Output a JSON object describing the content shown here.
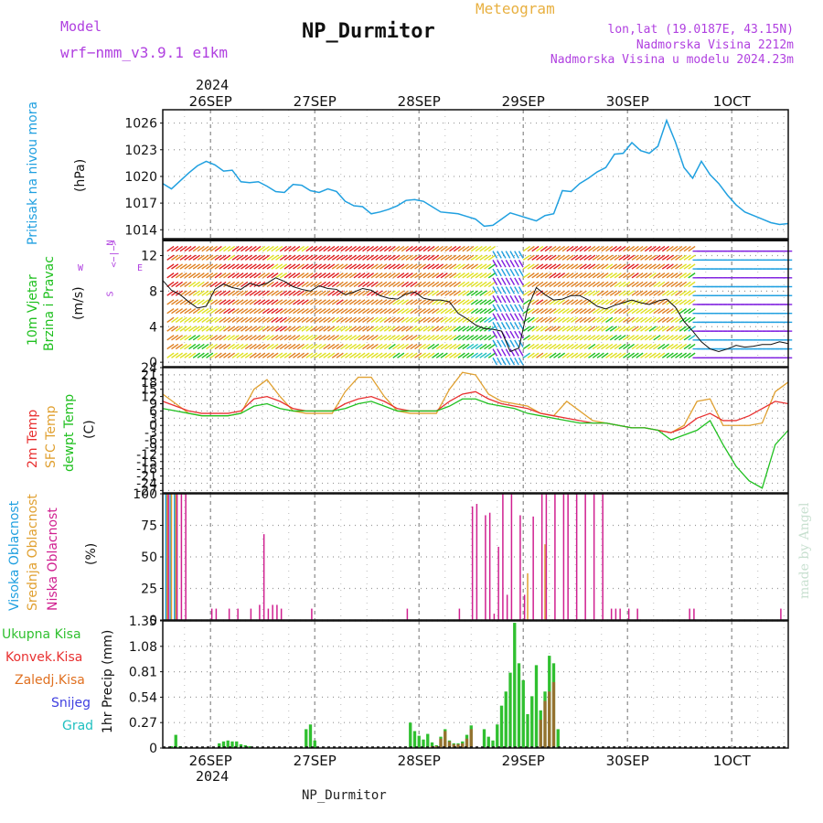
{
  "header": {
    "model_label": "Model",
    "model_name": "wrf−nmm_v3.9.1  e1km",
    "meteogram": "Meteogram",
    "station": "NP_Durmitor",
    "lonlat": "lon,lat (19.0187E, 43.15N)",
    "elev": "Nadmorska Visina 2212m",
    "elev_model": "Nadmorska Visina u modelu 2024.23m",
    "footer_station": "NP_Durmitor",
    "credit": "made by Angel",
    "year_top": "2024",
    "year_bottom": "2024"
  },
  "dates": [
    "26SEP",
    "27SEP",
    "28SEP",
    "29SEP",
    "30SEP",
    "1OCT"
  ],
  "labels": {
    "pressure_name": "Pritisak na nivou mora",
    "pressure_unit": "(hPa)",
    "wind_name1": "10m  Vjetar",
    "wind_name2": "Brzina i Pravac",
    "wind_unit": "(m/s)",
    "compass_n": "N",
    "compass_s": "S",
    "compass_w": "W",
    "compass_e": "E",
    "temp_name1": "2m Temp",
    "temp_name2": "SFC Temp",
    "temp_name3": "dewpt Temp",
    "temp_unit": "(C)",
    "cloud_name1": "Visoka Oblacnost",
    "cloud_name2": "Srednja Oblacnost",
    "cloud_name3": "Niska Oblacnost",
    "cloud_unit": "(%)",
    "precip_unit": "1hr Precip  (mm)",
    "legend_total": "Ukupna  Kisa",
    "legend_conv": "Konvek.Kisa",
    "legend_freez": "Zaledj.Kisa",
    "legend_snow": "Snijeg",
    "legend_hail": "Grad"
  },
  "colors": {
    "pressure": "#20a0e0",
    "temp2m": "#e83030",
    "sfc": "#e0a030",
    "dewpt": "#20c020",
    "high_cloud": "#20a0e0",
    "mid_cloud": "#e0a030",
    "low_cloud": "#d02090",
    "total_rain": "#30c030",
    "conv_rain": "#e83030",
    "freez_rain": "#e07020",
    "snow": "#4040e0",
    "hail": "#20c0c0",
    "purple_text": "#b040e0"
  },
  "chart_data": [
    {
      "type": "line",
      "title": "",
      "ylabel": "Pritisak na nivou mora (hPa)",
      "ylim": [
        1013,
        1027.5
      ],
      "yticks": [
        1014,
        1017,
        1020,
        1023,
        1026
      ],
      "x_range_hours": [
        -11,
        133
      ],
      "grid": true,
      "series": [
        {
          "name": "Pritisak na nivou mora",
          "x": [
            -11,
            -9,
            -7,
            -5,
            -3,
            -1,
            1,
            3,
            5,
            7,
            9,
            11,
            13,
            15,
            17,
            19,
            21,
            23,
            25,
            27,
            29,
            31,
            33,
            35,
            37,
            39,
            41,
            43,
            45,
            47,
            49,
            51,
            53,
            55,
            57,
            59,
            61,
            63,
            65,
            67,
            69,
            71,
            73,
            75,
            77,
            79,
            81,
            83,
            85,
            87,
            89,
            91,
            93,
            95,
            97,
            99,
            101,
            103,
            105,
            107,
            109,
            111,
            113,
            115,
            117,
            119,
            121,
            123,
            125,
            127,
            129,
            131,
            133
          ],
          "values": [
            1019.2,
            1018.6,
            1019.5,
            1020.4,
            1021.2,
            1021.7,
            1021.3,
            1020.6,
            1020.7,
            1019.4,
            1019.3,
            1019.4,
            1018.9,
            1018.3,
            1018.2,
            1019.1,
            1019.0,
            1018.4,
            1018.2,
            1018.6,
            1018.3,
            1017.2,
            1016.7,
            1016.6,
            1015.8,
            1016.0,
            1016.3,
            1016.7,
            1017.3,
            1017.4,
            1017.2,
            1016.6,
            1016.0,
            1015.9,
            1015.8,
            1015.5,
            1015.2,
            1014.4,
            1014.5,
            1015.2,
            1015.9,
            1015.6,
            1015.3,
            1015.0,
            1015.6,
            1015.8,
            1018.4,
            1018.3,
            1019.2,
            1019.8,
            1020.5,
            1021.0,
            1022.5,
            1022.6,
            1023.8,
            1022.9,
            1022.6,
            1023.4,
            1026.3,
            1023.9,
            1021.0,
            1019.8,
            1021.7,
            1020.2,
            1019.2,
            1017.9,
            1016.8,
            1016.0,
            1015.6,
            1015.2,
            1014.8,
            1014.6,
            1014.7
          ]
        }
      ]
    },
    {
      "type": "line",
      "title": "",
      "ylabel": "10m Vjetar Brzina i Pravac (m/s)",
      "ylim": [
        -0.5,
        13.8
      ],
      "yticks": [
        0,
        4,
        8,
        12
      ],
      "x_range_hours": [
        -11,
        133
      ],
      "grid": true,
      "series": [
        {
          "name": "10m Vjetar",
          "x": [
            -11,
            -9,
            -7,
            -5,
            -3,
            -1,
            1,
            3,
            5,
            7,
            9,
            11,
            13,
            15,
            17,
            19,
            21,
            23,
            25,
            27,
            29,
            31,
            33,
            35,
            37,
            39,
            41,
            43,
            45,
            47,
            49,
            51,
            53,
            55,
            57,
            59,
            61,
            63,
            65,
            67,
            69,
            71,
            73,
            75,
            77,
            79,
            81,
            83,
            85,
            87,
            89,
            91,
            93,
            95,
            97,
            99,
            101,
            103,
            105,
            107,
            109,
            111,
            113,
            115,
            117,
            119,
            121,
            123,
            125,
            127,
            129,
            131,
            133
          ],
          "values": [
            9.2,
            8.1,
            7.6,
            6.8,
            6.1,
            6.3,
            8.2,
            8.8,
            8.4,
            8.2,
            8.9,
            8.6,
            8.9,
            9.5,
            9.1,
            8.5,
            8.2,
            8.0,
            8.6,
            8.3,
            8.2,
            7.6,
            7.9,
            8.3,
            8.1,
            7.5,
            7.2,
            7.1,
            7.7,
            7.9,
            7.2,
            7.0,
            7.0,
            6.8,
            5.5,
            4.9,
            4.2,
            3.8,
            3.7,
            3.5,
            1.2,
            1.6,
            6.1,
            8.4,
            7.6,
            7.0,
            7.1,
            7.5,
            7.5,
            7.0,
            6.3,
            6.0,
            6.4,
            6.7,
            7.0,
            6.7,
            6.5,
            6.9,
            7.1,
            6.2,
            4.6,
            3.5,
            2.3,
            1.5,
            1.2,
            1.5,
            1.9,
            1.7,
            1.8,
            2.0,
            2.0,
            2.3,
            2.1
          ]
        }
      ],
      "colormap": [
        "#20c020",
        "#20c0c0",
        "#20a0e0",
        "#8020e0",
        "#e0e020",
        "#e08020",
        "#e02020"
      ]
    },
    {
      "type": "line",
      "title": "",
      "ylabel": "Temp (C)",
      "ylim": [
        -28,
        24
      ],
      "yticks": [
        -27,
        -24,
        -21,
        -18,
        -15,
        -12,
        -9,
        -6,
        -3,
        0,
        3,
        6,
        9,
        12,
        15,
        18,
        21,
        24
      ],
      "x_range_hours": [
        -11,
        133
      ],
      "grid": true,
      "series": [
        {
          "name": "2m Temp",
          "x": [
            -11,
            -8,
            -5,
            -2,
            1,
            4,
            7,
            10,
            13,
            16,
            19,
            22,
            25,
            28,
            31,
            34,
            37,
            40,
            43,
            46,
            49,
            52,
            55,
            58,
            61,
            64,
            67,
            70,
            73,
            76,
            79,
            82,
            85,
            88,
            91,
            94,
            97,
            100,
            103,
            106,
            109,
            112,
            115,
            118,
            121,
            124,
            127,
            130,
            133
          ],
          "values": [
            10,
            8,
            6,
            5,
            5,
            5,
            6,
            11,
            12,
            10,
            7,
            6,
            6,
            6,
            9,
            11,
            12,
            10,
            7,
            6,
            6,
            6,
            10,
            13,
            14,
            11,
            9,
            8,
            7,
            5,
            4,
            3,
            2,
            1,
            1,
            0,
            -1,
            -1,
            -2,
            -3,
            -1,
            3,
            5,
            2,
            2,
            4,
            7,
            10,
            9
          ]
        },
        {
          "name": "SFC Temp",
          "x": [
            -11,
            -8,
            -5,
            -2,
            1,
            4,
            7,
            10,
            13,
            16,
            19,
            22,
            25,
            28,
            31,
            34,
            37,
            40,
            43,
            46,
            49,
            52,
            55,
            58,
            61,
            64,
            67,
            70,
            73,
            76,
            79,
            82,
            85,
            88,
            91,
            94,
            97,
            100,
            103,
            106,
            109,
            112,
            115,
            118,
            121,
            124,
            127,
            130,
            133
          ],
          "values": [
            13,
            9,
            5,
            4,
            4,
            4,
            5,
            15,
            19,
            12,
            6,
            5,
            5,
            5,
            14,
            20,
            20,
            12,
            6,
            5,
            5,
            5,
            15,
            22,
            21,
            13,
            10,
            9,
            8,
            5,
            4,
            10,
            6,
            2,
            1,
            0,
            -1,
            -1,
            -2,
            -3,
            0,
            10,
            11,
            0,
            0,
            0,
            1,
            14,
            18
          ]
        },
        {
          "name": "dewpt Temp",
          "x": [
            -11,
            -8,
            -5,
            -2,
            1,
            4,
            7,
            10,
            13,
            16,
            19,
            22,
            25,
            28,
            31,
            34,
            37,
            40,
            43,
            46,
            49,
            52,
            55,
            58,
            61,
            64,
            67,
            70,
            73,
            76,
            79,
            82,
            85,
            88,
            91,
            94,
            97,
            100,
            103,
            106,
            109,
            112,
            115,
            118,
            121,
            124,
            127,
            130,
            133
          ],
          "values": [
            7,
            6,
            5,
            4,
            4,
            4,
            5,
            8,
            9,
            7,
            6,
            6,
            6,
            6,
            7,
            9,
            10,
            8,
            6,
            6,
            6,
            6,
            8,
            11,
            11,
            9,
            8,
            7,
            5,
            4,
            3,
            2,
            1,
            1,
            1,
            0,
            -1,
            -1,
            -2,
            -6,
            -4,
            -2,
            2,
            -8,
            -17,
            -23,
            -26,
            -8,
            -2
          ]
        }
      ]
    },
    {
      "type": "bar",
      "title": "",
      "ylabel": "Oblacnost (%)",
      "ylim": [
        0,
        100
      ],
      "yticks": [
        0,
        25,
        50,
        75,
        100
      ],
      "x_range_hours": [
        -11,
        133
      ],
      "grid": true,
      "series": [
        {
          "name": "Visoka Oblacnost",
          "x": [
            -10,
            -9,
            -8
          ],
          "values": [
            100,
            100,
            100
          ]
        },
        {
          "name": "Srednja Oblacnost",
          "x": [
            -10,
            -9,
            -8,
            73,
            77
          ],
          "values": [
            100,
            100,
            100,
            37,
            60
          ]
        },
        {
          "name": "Niska Oblacnost",
          "x": [
            -10,
            -8,
            -7,
            -6,
            0,
            1,
            4,
            6,
            9,
            11,
            12,
            13,
            14,
            15,
            16,
            23,
            45,
            57,
            60,
            61,
            63,
            64,
            65,
            66,
            67,
            68,
            69,
            71,
            72,
            74,
            76,
            77,
            79,
            81,
            82,
            84,
            86,
            88,
            90,
            92,
            93,
            94,
            96,
            98,
            110,
            111,
            131
          ],
          "values": [
            100,
            100,
            100,
            100,
            9,
            9,
            9,
            9,
            9,
            12,
            68,
            9,
            12,
            12,
            9,
            9,
            9,
            9,
            90,
            92,
            83,
            85,
            5,
            58,
            100,
            20,
            100,
            83,
            20,
            82,
            100,
            100,
            100,
            100,
            100,
            100,
            100,
            100,
            100,
            9,
            9,
            9,
            9,
            9,
            9,
            9,
            9
          ]
        }
      ]
    },
    {
      "type": "bar",
      "title": "",
      "ylabel": "1hr Precip (mm)",
      "ylim": [
        0,
        1.35
      ],
      "yticks": [
        0,
        0.27,
        0.54,
        0.81,
        1.08,
        1.35
      ],
      "x_range_hours": [
        -11,
        133
      ],
      "grid": true,
      "series": [
        {
          "name": "Ukupna Kisa",
          "x": [
            -9,
            -8,
            -7,
            2,
            3,
            4,
            5,
            6,
            7,
            8,
            9,
            22,
            23,
            24,
            46,
            47,
            48,
            49,
            50,
            51,
            52,
            53,
            54,
            55,
            56,
            57,
            58,
            59,
            60,
            63,
            64,
            65,
            66,
            67,
            68,
            69,
            70,
            71,
            72,
            73,
            74,
            75,
            76,
            77,
            78,
            79,
            80
          ],
          "values": [
            0.02,
            0.14,
            0.02,
            0.05,
            0.07,
            0.08,
            0.07,
            0.07,
            0.04,
            0.03,
            0.02,
            0.2,
            0.25,
            0.08,
            0.27,
            0.18,
            0.13,
            0.09,
            0.15,
            0.06,
            0.03,
            0.12,
            0.2,
            0.08,
            0.05,
            0.05,
            0.07,
            0.14,
            0.24,
            0.2,
            0.12,
            0.08,
            0.25,
            0.45,
            0.6,
            0.8,
            1.33,
            0.9,
            0.72,
            0.36,
            0.55,
            0.88,
            0.4,
            0.6,
            0.98,
            0.9,
            0.2
          ]
        },
        {
          "name": "Konvek.Kisa",
          "x": [
            51,
            52,
            53,
            54,
            55,
            56,
            57,
            58,
            59,
            60,
            76,
            77,
            78,
            79
          ],
          "values": [
            0.02,
            0.02,
            0.1,
            0.18,
            0.07,
            0.04,
            0.04,
            0.05,
            0.1,
            0.2,
            0.3,
            0.5,
            0.6,
            0.7
          ]
        }
      ]
    }
  ]
}
